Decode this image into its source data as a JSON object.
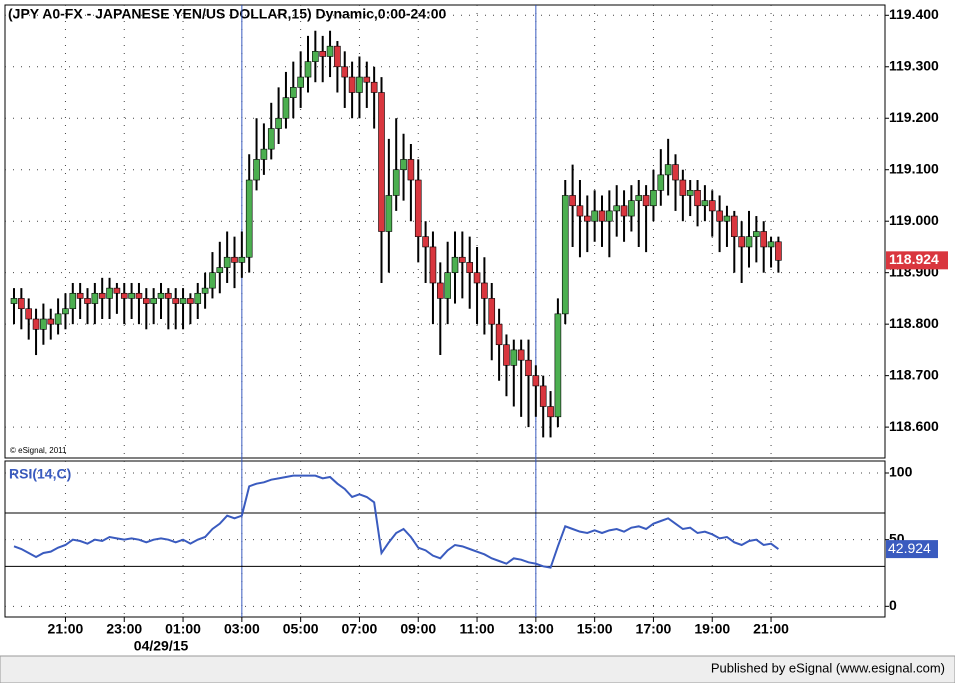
{
  "chart_data": [
    {
      "type": "candlestick",
      "title": "(JPY A0-FX - JAPANESE YEN/US DOLLAR,15) Dynamic,0:00-24:00",
      "copyright": "© eSignal, 2011",
      "date": "04/29/15",
      "categories": [
        null,
        null,
        null,
        null,
        null,
        null,
        null,
        "21:00",
        null,
        null,
        null,
        null,
        null,
        null,
        null,
        "23:00",
        null,
        null,
        null,
        null,
        null,
        null,
        null,
        "01:00",
        null,
        null,
        null,
        null,
        null,
        null,
        null,
        "03:00",
        null,
        null,
        null,
        null,
        null,
        null,
        null,
        "05:00",
        null,
        null,
        null,
        null,
        null,
        null,
        null,
        "07:00",
        null,
        null,
        null,
        null,
        null,
        null,
        null,
        "09:00",
        null,
        null,
        null,
        null,
        null,
        null,
        null,
        "11:00",
        null,
        null,
        null,
        null,
        null,
        null,
        null,
        "13:00",
        null,
        null,
        null,
        null,
        null,
        null,
        null,
        "15:00",
        null,
        null,
        null,
        null,
        null,
        null,
        null,
        "17:00",
        null,
        null,
        null,
        null,
        null,
        null,
        null,
        "19:00",
        null,
        null,
        null,
        null,
        null,
        null,
        null,
        "21:00",
        null
      ],
      "open": [
        118.84,
        118.85,
        118.83,
        118.81,
        118.79,
        118.81,
        118.8,
        118.82,
        118.83,
        118.86,
        118.85,
        118.84,
        118.86,
        118.85,
        118.87,
        118.86,
        118.85,
        118.86,
        118.85,
        118.84,
        118.85,
        118.86,
        118.85,
        118.84,
        118.85,
        118.84,
        118.86,
        118.87,
        118.9,
        118.91,
        118.93,
        118.92,
        118.93,
        119.08,
        119.12,
        119.14,
        119.18,
        119.2,
        119.24,
        119.26,
        119.28,
        119.31,
        119.33,
        119.32,
        119.34,
        119.3,
        119.28,
        119.25,
        119.28,
        119.27,
        119.25,
        118.98,
        119.05,
        119.1,
        119.12,
        119.08,
        118.97,
        118.95,
        118.88,
        118.85,
        118.9,
        118.93,
        118.92,
        118.9,
        118.88,
        118.85,
        118.8,
        118.76,
        118.72,
        118.75,
        118.73,
        118.7,
        118.68,
        118.64,
        118.62,
        118.82,
        119.05,
        119.03,
        119.01,
        119.0,
        119.02,
        119.0,
        119.02,
        119.03,
        119.01,
        119.04,
        119.05,
        119.03,
        119.06,
        119.09,
        119.11,
        119.08,
        119.05,
        119.06,
        119.03,
        119.04,
        119.02,
        119.0,
        119.01,
        118.97,
        118.95,
        118.97,
        118.98,
        118.95,
        118.96
      ],
      "high": [
        118.87,
        118.87,
        118.85,
        118.83,
        118.84,
        118.83,
        118.85,
        118.86,
        118.88,
        118.88,
        118.87,
        118.88,
        118.89,
        118.89,
        118.88,
        118.88,
        118.88,
        118.88,
        118.87,
        118.87,
        118.88,
        118.87,
        118.87,
        118.87,
        118.86,
        118.88,
        118.9,
        118.94,
        118.96,
        118.98,
        118.97,
        118.98,
        119.13,
        119.2,
        119.19,
        119.23,
        119.26,
        119.29,
        119.31,
        119.33,
        119.36,
        119.37,
        119.36,
        119.37,
        119.35,
        119.33,
        119.31,
        119.32,
        119.31,
        119.3,
        119.28,
        119.16,
        119.2,
        119.17,
        119.15,
        119.12,
        119.0,
        118.98,
        118.92,
        118.96,
        118.98,
        118.98,
        118.97,
        118.95,
        118.93,
        118.88,
        118.83,
        118.78,
        118.77,
        118.77,
        118.77,
        118.72,
        118.7,
        118.67,
        118.85,
        119.08,
        119.11,
        119.08,
        119.05,
        119.06,
        119.05,
        119.06,
        119.07,
        119.06,
        119.07,
        119.08,
        119.07,
        119.1,
        119.14,
        119.16,
        119.13,
        119.1,
        119.08,
        119.08,
        119.07,
        119.06,
        119.05,
        119.03,
        119.02,
        119.0,
        119.02,
        119.01,
        119.0,
        118.97,
        118.97
      ],
      "low": [
        118.8,
        118.79,
        118.77,
        118.74,
        118.76,
        118.77,
        118.78,
        118.79,
        118.8,
        118.81,
        118.8,
        118.8,
        118.81,
        118.81,
        118.82,
        118.8,
        118.81,
        118.8,
        118.79,
        118.8,
        118.81,
        118.79,
        118.79,
        118.79,
        118.8,
        118.81,
        118.83,
        118.85,
        118.86,
        118.88,
        118.87,
        118.89,
        118.9,
        119.06,
        119.09,
        119.12,
        119.15,
        119.18,
        119.2,
        119.22,
        119.25,
        119.27,
        119.27,
        119.28,
        119.25,
        119.22,
        119.2,
        119.2,
        119.22,
        119.18,
        118.88,
        118.9,
        119.02,
        119.04,
        119.0,
        118.92,
        118.88,
        118.8,
        118.74,
        118.8,
        118.84,
        118.85,
        118.83,
        118.8,
        118.78,
        118.73,
        118.69,
        118.66,
        118.64,
        118.62,
        118.6,
        118.62,
        118.58,
        118.58,
        118.6,
        118.8,
        118.95,
        118.93,
        118.94,
        118.96,
        118.95,
        118.93,
        118.97,
        118.96,
        118.98,
        118.95,
        118.94,
        119.0,
        119.03,
        119.05,
        119.02,
        119.0,
        119.01,
        118.99,
        119.0,
        118.97,
        118.94,
        118.95,
        118.9,
        118.88,
        118.91,
        118.92,
        118.9,
        118.91,
        118.9
      ],
      "close": [
        118.85,
        118.83,
        118.81,
        118.79,
        118.81,
        118.8,
        118.82,
        118.83,
        118.86,
        118.85,
        118.84,
        118.86,
        118.85,
        118.87,
        118.86,
        118.85,
        118.86,
        118.85,
        118.84,
        118.85,
        118.86,
        118.85,
        118.84,
        118.85,
        118.84,
        118.86,
        118.87,
        118.9,
        118.91,
        118.93,
        118.92,
        118.93,
        119.08,
        119.12,
        119.14,
        119.18,
        119.2,
        119.24,
        119.26,
        119.28,
        119.31,
        119.33,
        119.32,
        119.34,
        119.3,
        119.28,
        119.25,
        119.28,
        119.27,
        119.25,
        118.98,
        119.05,
        119.1,
        119.12,
        119.08,
        118.97,
        118.95,
        118.88,
        118.85,
        118.9,
        118.93,
        118.92,
        118.9,
        118.88,
        118.85,
        118.8,
        118.76,
        118.72,
        118.75,
        118.73,
        118.7,
        118.68,
        118.64,
        118.62,
        118.82,
        119.05,
        119.03,
        119.01,
        119.0,
        119.02,
        119.0,
        119.02,
        119.03,
        119.01,
        119.04,
        119.05,
        119.03,
        119.06,
        119.09,
        119.11,
        119.08,
        119.05,
        119.06,
        119.03,
        119.04,
        119.02,
        119.0,
        119.01,
        118.97,
        118.95,
        118.97,
        118.98,
        118.95,
        118.96,
        118.924
      ],
      "up_color": "#4caf50",
      "down_color": "#d9363e",
      "ylim": [
        118.54,
        119.42
      ],
      "yticks": [
        {
          "value": 118.6,
          "label": "118.600"
        },
        {
          "value": 118.7,
          "label": "118.700"
        },
        {
          "value": 118.8,
          "label": "118.800"
        },
        {
          "value": 118.9,
          "label": "118.900"
        },
        {
          "value": 119.0,
          "label": "119.000"
        },
        {
          "value": 119.1,
          "label": "119.100"
        },
        {
          "value": 119.2,
          "label": "119.200"
        },
        {
          "value": 119.3,
          "label": "119.300"
        },
        {
          "value": 119.4,
          "label": "119.400"
        }
      ],
      "grid": true
    },
    {
      "type": "line",
      "title": "RSI(14,C)",
      "color": "#3a5bbf",
      "values": [
        45,
        43,
        40,
        37,
        40,
        41,
        44,
        46,
        50,
        49,
        47,
        50,
        49,
        52,
        51,
        50,
        51,
        50,
        48,
        50,
        51,
        50,
        48,
        50,
        47,
        50,
        52,
        58,
        62,
        68,
        66,
        68,
        90,
        92,
        93,
        95,
        96,
        97,
        98,
        98,
        98,
        98,
        96,
        97,
        92,
        88,
        82,
        84,
        82,
        78,
        40,
        48,
        55,
        58,
        52,
        44,
        42,
        38,
        36,
        42,
        46,
        45,
        43,
        41,
        39,
        36,
        34,
        32,
        36,
        35,
        33,
        32,
        30,
        29,
        45,
        60,
        58,
        56,
        55,
        57,
        55,
        57,
        58,
        56,
        59,
        60,
        58,
        62,
        64,
        66,
        62,
        58,
        59,
        55,
        56,
        54,
        51,
        52,
        48,
        46,
        49,
        50,
        46,
        47,
        42.924
      ],
      "levels": [
        30,
        70
      ],
      "ylim": [
        -8,
        109
      ],
      "yticks": [
        0,
        50,
        100
      ],
      "grid": true
    }
  ],
  "footer": "Published by eSignal (www.esignal.com)"
}
